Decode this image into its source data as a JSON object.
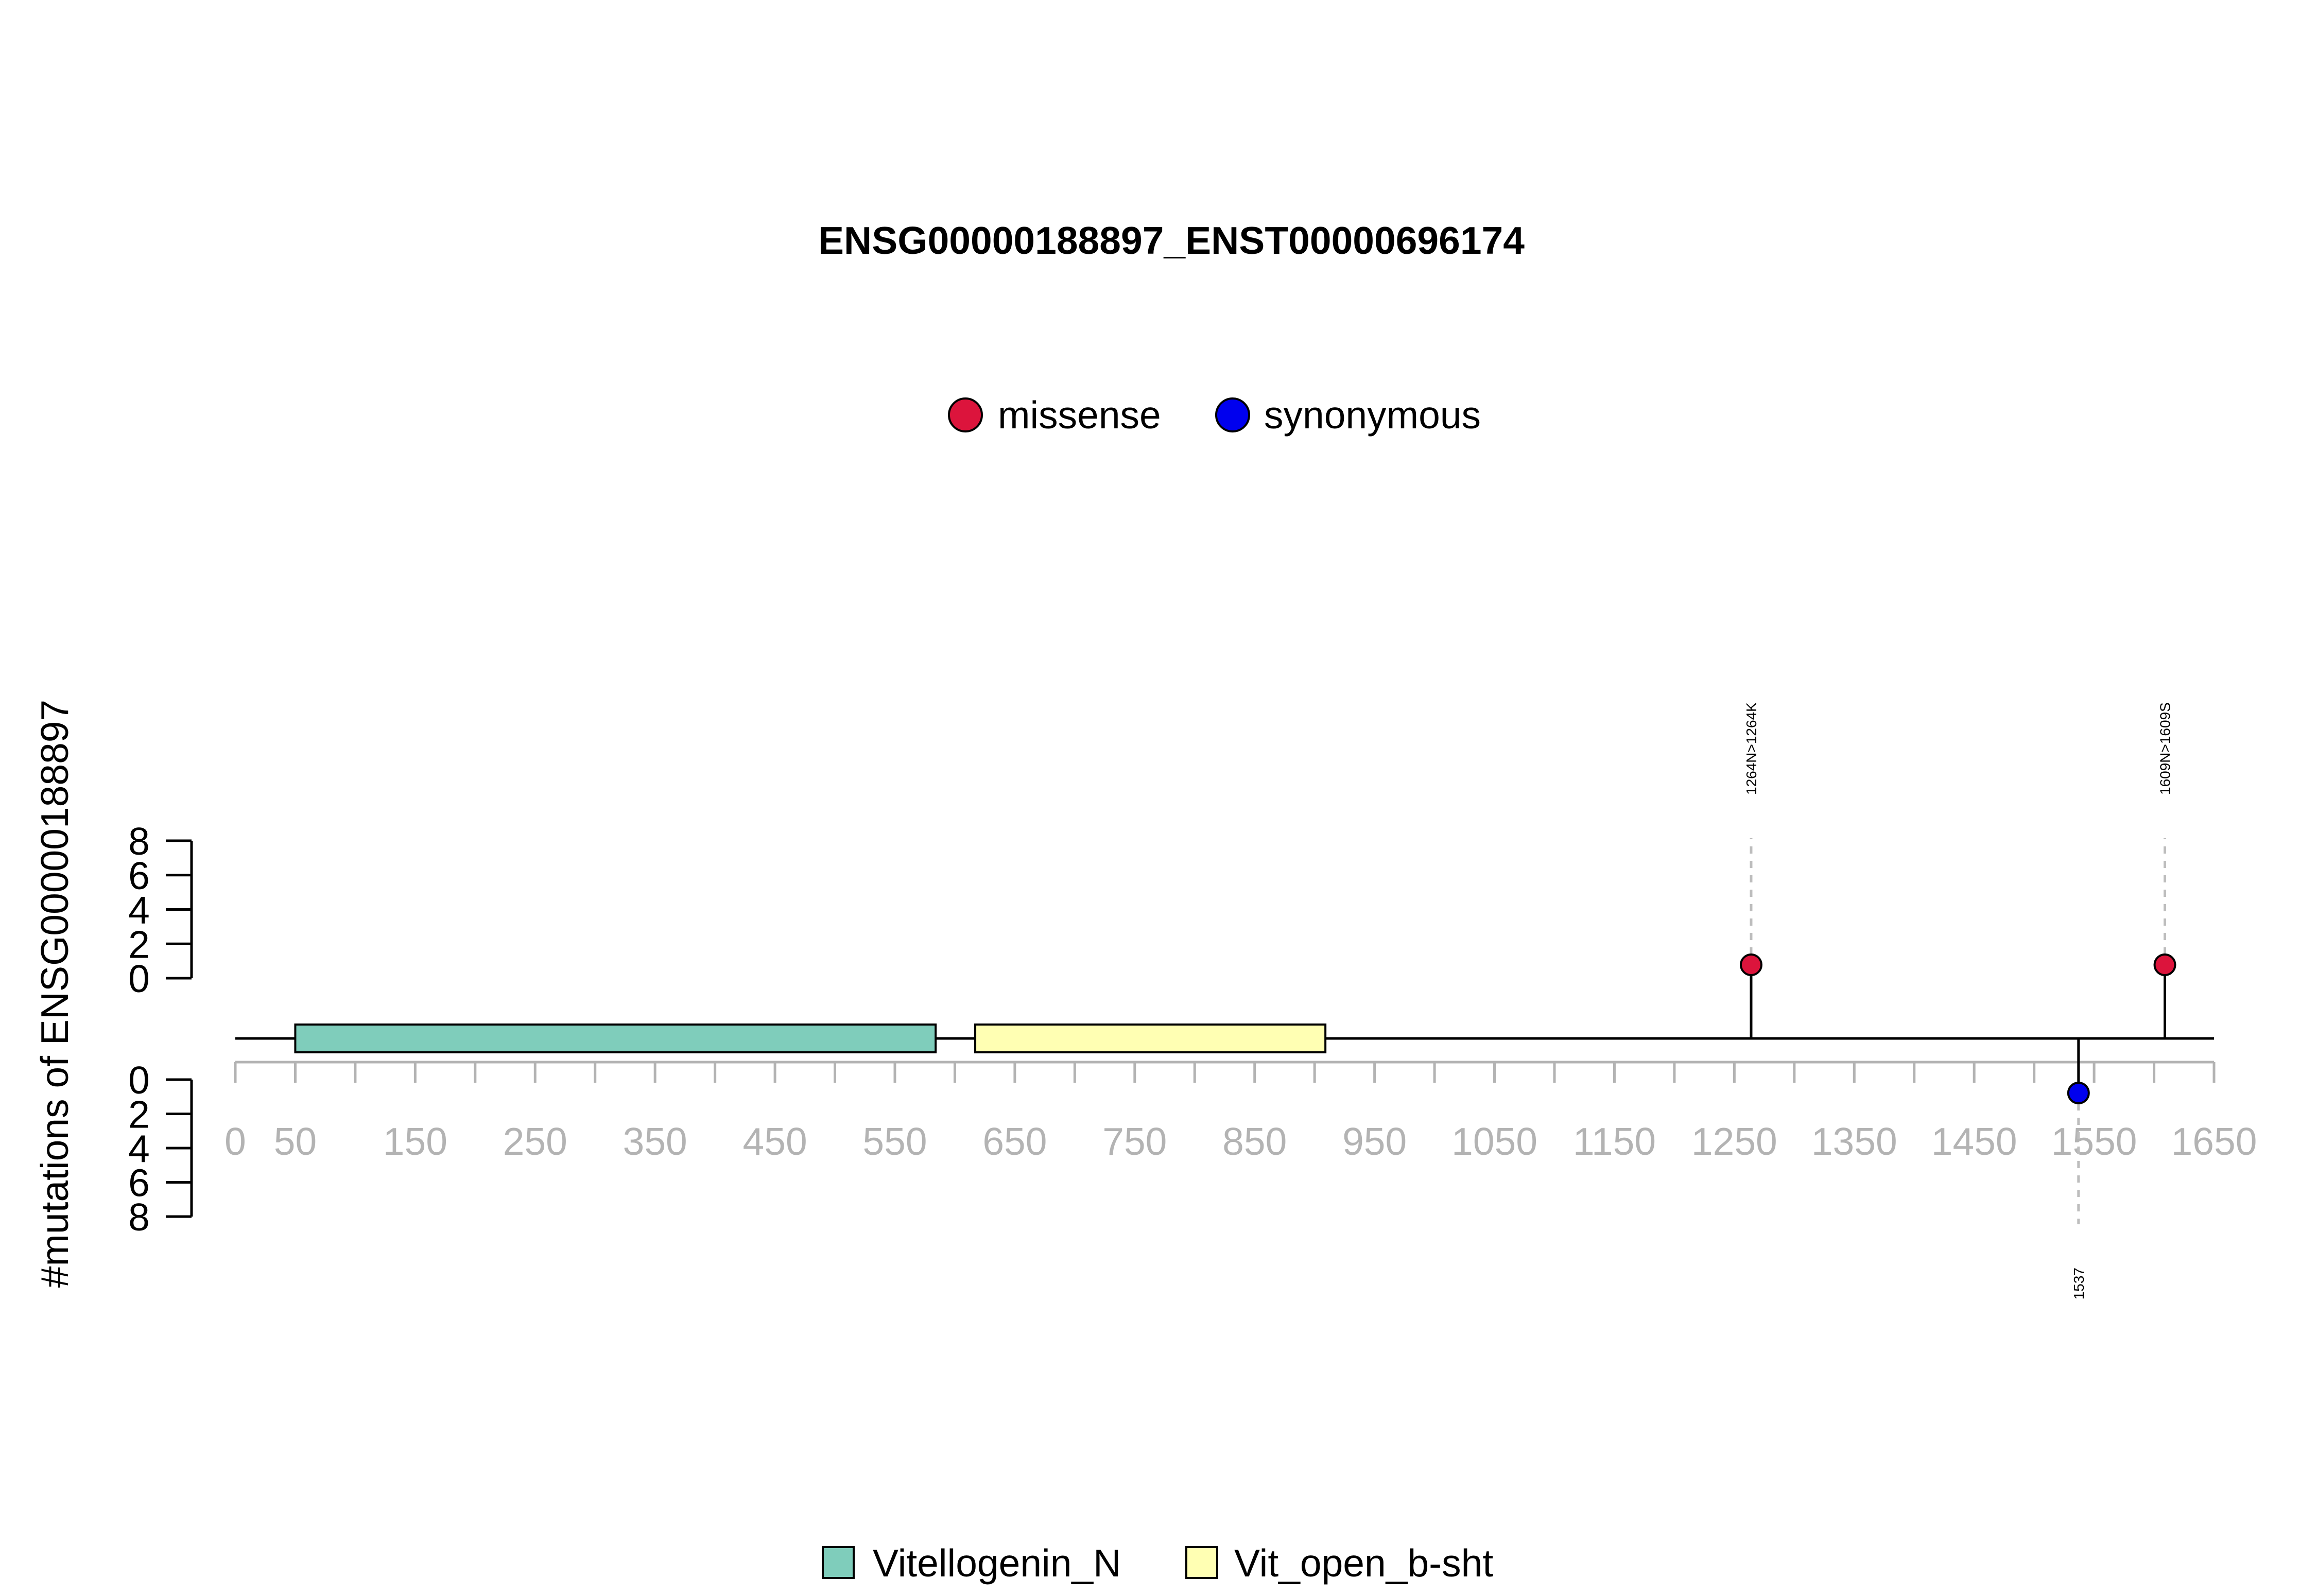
{
  "chart_data": {
    "type": "lollipop",
    "title": "ENSG00000188897_ENST00000696174",
    "ylabel": "#mutations of ENSG00000188897",
    "x_ticks": [
      0,
      50,
      150,
      250,
      350,
      450,
      550,
      650,
      750,
      850,
      950,
      1050,
      1150,
      1250,
      1350,
      1450,
      1550,
      1650
    ],
    "x_minor_step": 50,
    "xlim": [
      0,
      1650
    ],
    "y_ticks_top": [
      0,
      2,
      4,
      6,
      8
    ],
    "y_ticks_bottom": [
      0,
      2,
      4,
      6,
      8
    ],
    "ylim": [
      0,
      8
    ],
    "legend_mutations": [
      {
        "label": "missense",
        "color": "#DC143C"
      },
      {
        "label": "synonymous",
        "color": "#0000EE"
      }
    ],
    "legend_domains": [
      {
        "label": "Vitellogenin_N",
        "color": "#7FCDBB"
      },
      {
        "label": "Vit_open_b-sht",
        "color": "#FFFFB3"
      }
    ],
    "domains": [
      {
        "name": "Vitellogenin_N",
        "start": 50,
        "end": 584,
        "color": "#7FCDBB"
      },
      {
        "name": "Vit_open_b-sht",
        "start": 617,
        "end": 909,
        "color": "#FFFFB3"
      }
    ],
    "mutations": [
      {
        "position": 1264,
        "label": "1264N>1264K",
        "type": "missense",
        "count": 1,
        "side": "top"
      },
      {
        "position": 1609,
        "label": "1609N>1609S",
        "type": "missense",
        "count": 1,
        "side": "top"
      },
      {
        "position": 1537,
        "label": "1537",
        "type": "synonymous",
        "count": 1,
        "side": "bottom"
      }
    ]
  }
}
